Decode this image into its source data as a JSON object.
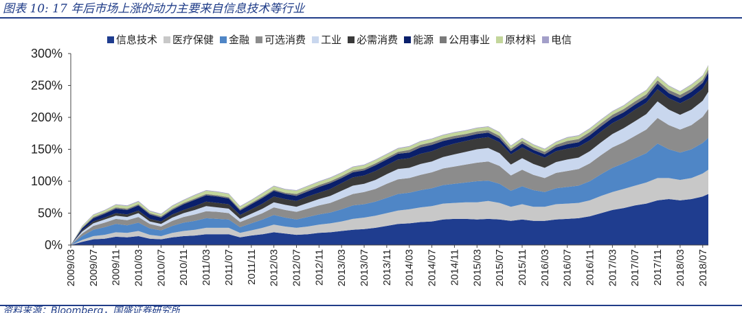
{
  "figure": {
    "title": "图表 10:  17 年后市场上涨的动力主要来自信息技术等行业",
    "source": "资料来源：Bloomberg，国盛证券研究所"
  },
  "chart_data": {
    "type": "area",
    "stacked": true,
    "title": "",
    "xlabel": "",
    "ylabel": "",
    "ylim": [
      0,
      300
    ],
    "yticks": [
      "0%",
      "50%",
      "100%",
      "150%",
      "200%",
      "250%",
      "300%"
    ],
    "xticks": [
      "2009/03",
      "2009/07",
      "2009/11",
      "2010/03",
      "2010/07",
      "2010/11",
      "2011/03",
      "2011/07",
      "2011/11",
      "2012/03",
      "2012/07",
      "2012/11",
      "2013/03",
      "2013/07",
      "2013/11",
      "2014/03",
      "2014/07",
      "2014/11",
      "2015/03",
      "2015/07",
      "2015/11",
      "2016/03",
      "2016/07",
      "2016/11",
      "2017/03",
      "2017/07",
      "2017/11",
      "2018/03",
      "2018/07"
    ],
    "legend_position": "top",
    "grid": false,
    "x": [
      "2009/03",
      "2009/05",
      "2009/07",
      "2009/09",
      "2009/11",
      "2010/01",
      "2010/03",
      "2010/05",
      "2010/07",
      "2010/09",
      "2010/11",
      "2011/01",
      "2011/03",
      "2011/05",
      "2011/07",
      "2011/09",
      "2011/11",
      "2012/01",
      "2012/03",
      "2012/05",
      "2012/07",
      "2012/09",
      "2012/11",
      "2013/01",
      "2013/03",
      "2013/05",
      "2013/07",
      "2013/09",
      "2013/11",
      "2014/01",
      "2014/03",
      "2014/05",
      "2014/07",
      "2014/09",
      "2014/11",
      "2015/01",
      "2015/03",
      "2015/05",
      "2015/07",
      "2015/09",
      "2015/11",
      "2016/01",
      "2016/03",
      "2016/05",
      "2016/07",
      "2016/09",
      "2016/11",
      "2017/01",
      "2017/03",
      "2017/05",
      "2017/07",
      "2017/09",
      "2017/11",
      "2018/01",
      "2018/03",
      "2018/05",
      "2018/07",
      "2018/08"
    ],
    "series": [
      {
        "name": "信息技术",
        "color": "#1f3d8f",
        "values": [
          0,
          5,
          9,
          10,
          13,
          12,
          14,
          10,
          9,
          12,
          14,
          15,
          17,
          17,
          17,
          12,
          15,
          17,
          20,
          18,
          16,
          17,
          19,
          20,
          22,
          24,
          25,
          27,
          30,
          33,
          34,
          36,
          37,
          40,
          41,
          41,
          40,
          41,
          40,
          38,
          40,
          38,
          38,
          40,
          41,
          42,
          45,
          50,
          55,
          58,
          62,
          65,
          70,
          72,
          70,
          72,
          76,
          80
        ]
      },
      {
        "name": "医疗保健",
        "color": "#c8c8c8",
        "values": [
          0,
          3,
          5,
          6,
          7,
          7,
          8,
          6,
          5,
          7,
          8,
          9,
          10,
          10,
          10,
          7,
          8,
          10,
          12,
          11,
          11,
          12,
          13,
          14,
          15,
          17,
          18,
          19,
          20,
          21,
          22,
          23,
          24,
          25,
          25,
          26,
          27,
          28,
          26,
          22,
          24,
          22,
          22,
          24,
          24,
          24,
          25,
          27,
          28,
          30,
          31,
          33,
          35,
          33,
          32,
          33,
          36,
          38
        ]
      },
      {
        "name": "金融",
        "color": "#4f86c6",
        "values": [
          0,
          6,
          10,
          12,
          13,
          12,
          13,
          10,
          9,
          11,
          13,
          14,
          15,
          14,
          13,
          9,
          11,
          13,
          15,
          14,
          13,
          15,
          16,
          17,
          19,
          21,
          21,
          22,
          24,
          26,
          26,
          27,
          28,
          29,
          30,
          31,
          33,
          32,
          30,
          25,
          28,
          26,
          23,
          25,
          26,
          27,
          30,
          34,
          38,
          40,
          43,
          46,
          54,
          45,
          43,
          45,
          48,
          50
        ]
      },
      {
        "name": "可选消费",
        "color": "#8c8c8c",
        "values": [
          0,
          4,
          6,
          7,
          8,
          8,
          9,
          7,
          6,
          8,
          9,
          10,
          11,
          11,
          10,
          8,
          9,
          10,
          12,
          12,
          12,
          13,
          14,
          15,
          17,
          18,
          19,
          20,
          22,
          23,
          23,
          24,
          25,
          26,
          27,
          28,
          29,
          30,
          28,
          24,
          26,
          24,
          22,
          24,
          25,
          26,
          28,
          30,
          32,
          33,
          35,
          37,
          40,
          38,
          36,
          38,
          41,
          45
        ]
      },
      {
        "name": "工业",
        "color": "#c9d7ee",
        "values": [
          0,
          3,
          4,
          5,
          5,
          5,
          6,
          4,
          4,
          5,
          6,
          7,
          8,
          7,
          7,
          5,
          6,
          7,
          8,
          8,
          8,
          9,
          10,
          11,
          12,
          13,
          13,
          14,
          15,
          16,
          16,
          17,
          17,
          18,
          19,
          20,
          21,
          21,
          20,
          17,
          18,
          17,
          16,
          17,
          18,
          18,
          19,
          20,
          21,
          22,
          23,
          24,
          26,
          24,
          23,
          24,
          25,
          27
        ]
      },
      {
        "name": "必需消费",
        "color": "#3a3a3a",
        "values": [
          0,
          2,
          3,
          3,
          4,
          4,
          4,
          4,
          4,
          5,
          5,
          6,
          7,
          7,
          7,
          6,
          7,
          8,
          9,
          9,
          9,
          10,
          10,
          11,
          12,
          13,
          13,
          14,
          14,
          15,
          15,
          16,
          16,
          16,
          17,
          17,
          17,
          17,
          17,
          16,
          17,
          17,
          16,
          17,
          17,
          17,
          17,
          17,
          17,
          17,
          18,
          18,
          19,
          18,
          18,
          19,
          19,
          20
        ]
      },
      {
        "name": "能源",
        "color": "#0a1f6b",
        "values": [
          0,
          3,
          5,
          6,
          7,
          7,
          8,
          7,
          6,
          7,
          9,
          10,
          10,
          10,
          9,
          7,
          8,
          9,
          9,
          8,
          8,
          8,
          9,
          9,
          8,
          8,
          8,
          9,
          9,
          9,
          9,
          10,
          10,
          9,
          8,
          7,
          7,
          7,
          6,
          5,
          6,
          5,
          5,
          6,
          7,
          7,
          8,
          8,
          8,
          8,
          8,
          8,
          9,
          8,
          8,
          9,
          9,
          10
        ]
      },
      {
        "name": "公用事业",
        "color": "#7a7a7a",
        "values": [
          0,
          1,
          2,
          2,
          2,
          2,
          2,
          2,
          2,
          2,
          2,
          2,
          2,
          2,
          2,
          2,
          2,
          2,
          2,
          2,
          3,
          3,
          3,
          3,
          3,
          3,
          3,
          3,
          3,
          3,
          4,
          4,
          4,
          4,
          4,
          4,
          4,
          4,
          4,
          4,
          4,
          4,
          4,
          4,
          5,
          5,
          5,
          5,
          5,
          5,
          5,
          5,
          5,
          5,
          5,
          5,
          5,
          5
        ]
      },
      {
        "name": "原材料",
        "color": "#c3d69b",
        "values": [
          0,
          2,
          3,
          3,
          4,
          4,
          4,
          3,
          3,
          4,
          4,
          5,
          5,
          5,
          5,
          4,
          4,
          5,
          5,
          5,
          5,
          5,
          5,
          5,
          5,
          5,
          5,
          5,
          5,
          5,
          5,
          5,
          5,
          5,
          5,
          5,
          5,
          5,
          5,
          4,
          4,
          4,
          4,
          4,
          5,
          5,
          5,
          5,
          5,
          5,
          6,
          6,
          6,
          6,
          5,
          6,
          6,
          6
        ]
      },
      {
        "name": "电信",
        "color": "#a39fc9",
        "values": [
          0,
          1,
          1,
          1,
          1,
          1,
          1,
          1,
          1,
          1,
          1,
          1,
          1,
          1,
          1,
          1,
          1,
          1,
          1,
          1,
          1,
          1,
          1,
          1,
          1,
          1,
          1,
          1,
          1,
          1,
          1,
          1,
          1,
          1,
          1,
          1,
          1,
          1,
          1,
          1,
          1,
          1,
          1,
          1,
          1,
          1,
          1,
          1,
          1,
          1,
          1,
          1,
          1,
          1,
          1,
          1,
          1,
          1
        ]
      }
    ]
  }
}
